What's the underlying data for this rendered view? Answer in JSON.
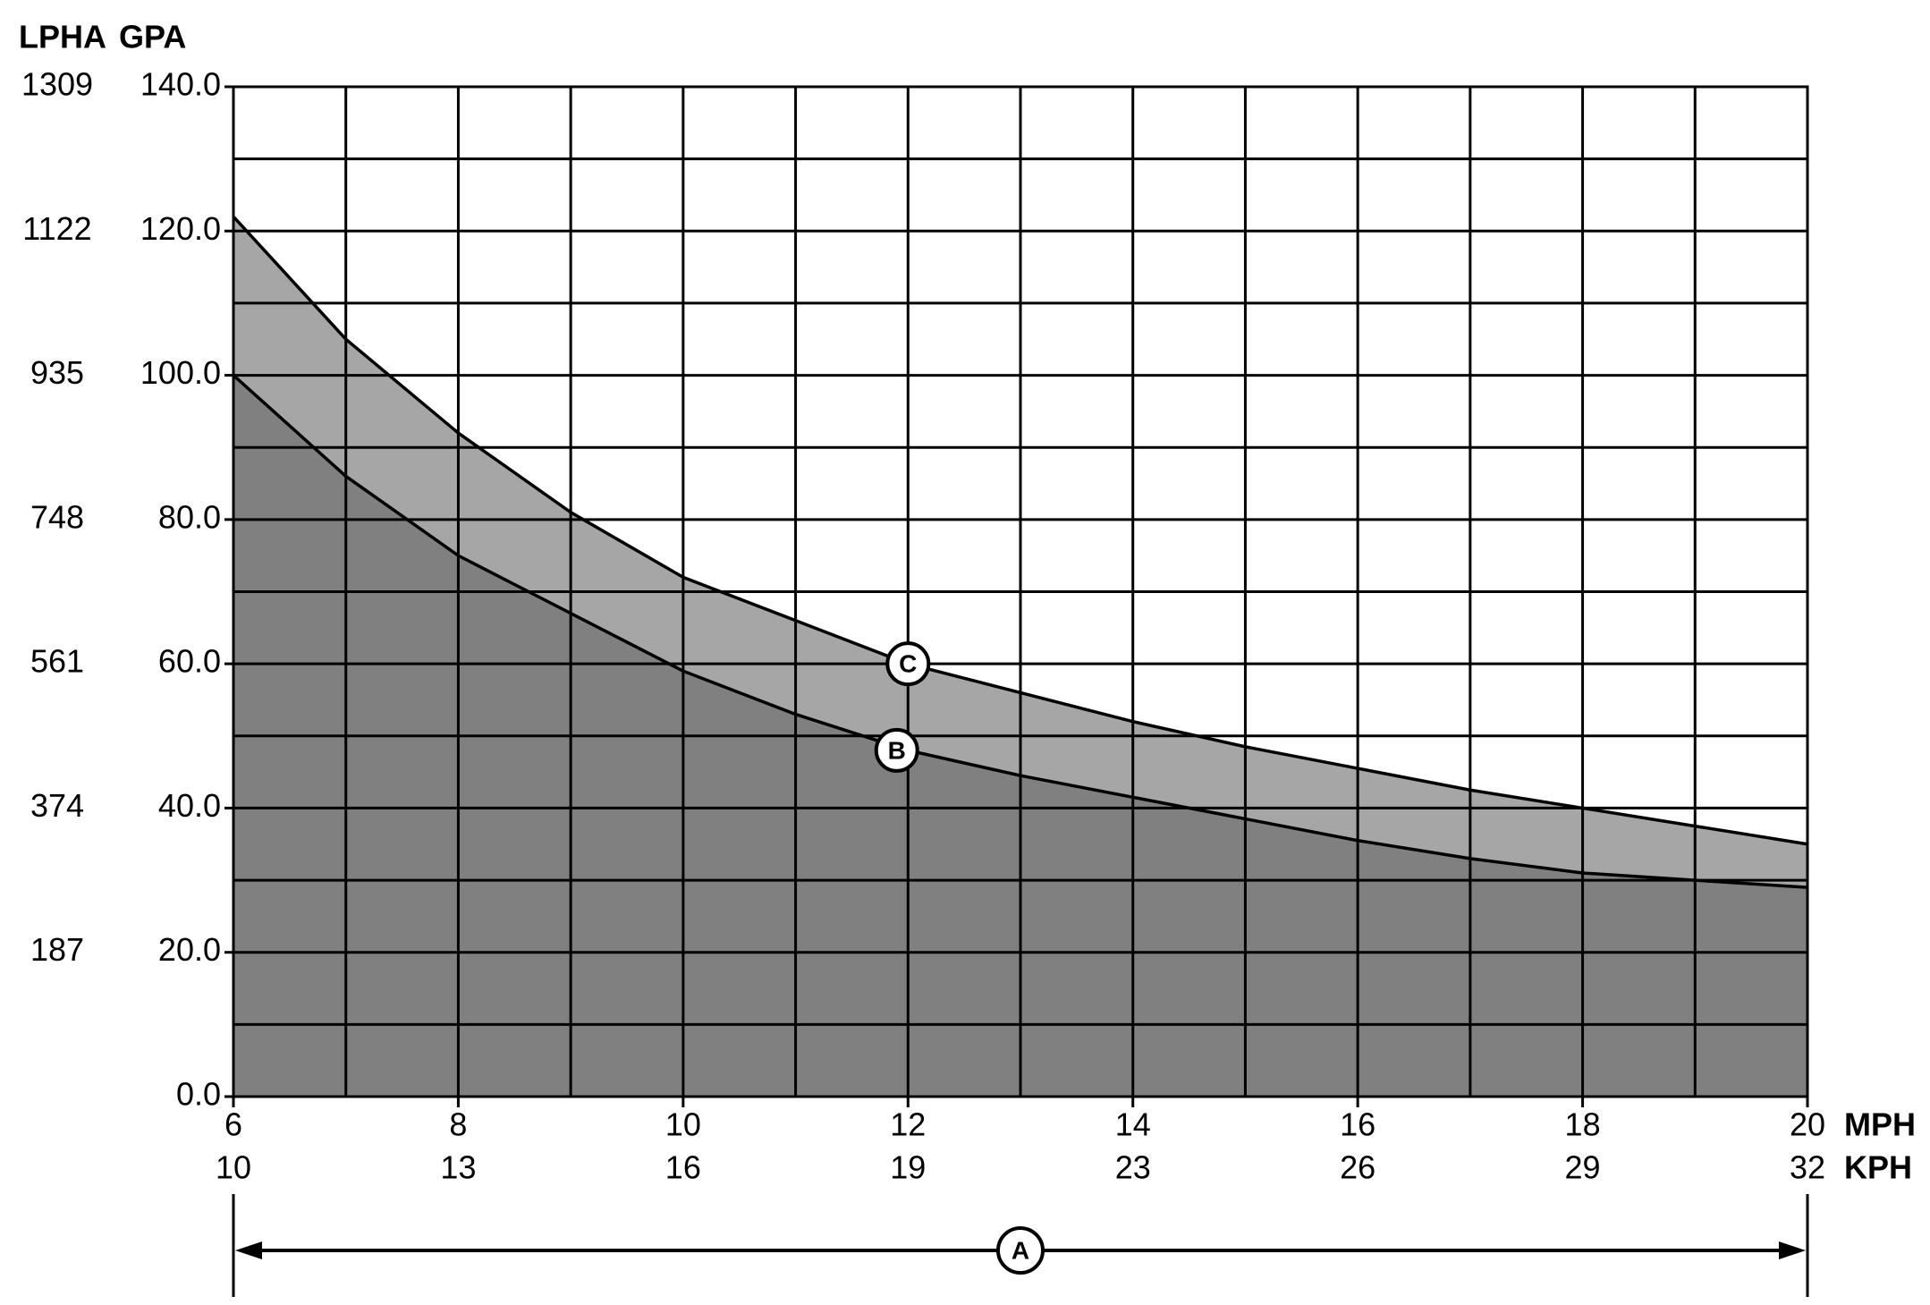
{
  "chart_data": {
    "type": "area",
    "y_axis_labels": [
      "LPHA",
      "GPA"
    ],
    "x_axis_labels": [
      "MPH",
      "KPH"
    ],
    "x": [
      6,
      7,
      8,
      9,
      10,
      11,
      12,
      13,
      14,
      15,
      16,
      17,
      18,
      19,
      20
    ],
    "series": [
      {
        "name": "C",
        "color": "#a6a6a6",
        "values": [
          122,
          105,
          92,
          81,
          72,
          66,
          60,
          56,
          52,
          48.5,
          45.5,
          42.5,
          40,
          37.5,
          35
        ]
      },
      {
        "name": "B",
        "color": "#808080",
        "values": [
          100,
          86,
          75,
          67,
          59,
          53,
          48,
          44.5,
          41.5,
          38.5,
          35.5,
          33,
          31,
          30,
          29
        ]
      }
    ],
    "xlim": [
      6,
      20
    ],
    "xticks": [
      6,
      8,
      10,
      12,
      14,
      16,
      18,
      20
    ],
    "x2lim": [
      9.656,
      32.187
    ],
    "x2ticks": [
      {
        "value": 9.656,
        "label": "10"
      },
      {
        "value": 12.875,
        "label": "13"
      },
      {
        "value": 16.093,
        "label": "16"
      },
      {
        "value": 19.312,
        "label": "19"
      },
      {
        "value": 22.531,
        "label": "23"
      },
      {
        "value": 25.749,
        "label": "26"
      },
      {
        "value": 28.968,
        "label": "29"
      },
      {
        "value": 32.187,
        "label": "32"
      }
    ],
    "ylim": [
      0,
      140
    ],
    "yticks": [
      {
        "value": 0,
        "label": "0.0"
      },
      {
        "value": 20,
        "label": "20.0"
      },
      {
        "value": 40,
        "label": "40.0"
      },
      {
        "value": 60,
        "label": "60.0"
      },
      {
        "value": 80,
        "label": "80.0"
      },
      {
        "value": 100,
        "label": "100.0"
      },
      {
        "value": 120,
        "label": "120.0"
      },
      {
        "value": 140,
        "label": "140.0"
      }
    ],
    "y2lim": [
      0,
      1309
    ],
    "y2ticks": [
      187,
      374,
      561,
      748,
      935,
      1122,
      1309
    ],
    "x_grid": [
      6,
      7,
      8,
      9,
      10,
      11,
      12,
      13,
      14,
      15,
      16,
      17,
      18,
      19,
      20
    ],
    "y_grid": [
      0,
      10,
      20,
      30,
      40,
      50,
      60,
      70,
      80,
      90,
      100,
      110,
      120,
      130,
      140
    ],
    "annotations": [
      {
        "text": "C",
        "x": 12,
        "y": 60
      },
      {
        "text": "B",
        "x": 11.9,
        "y": 48
      }
    ],
    "range_annotation": {
      "text": "A"
    }
  }
}
